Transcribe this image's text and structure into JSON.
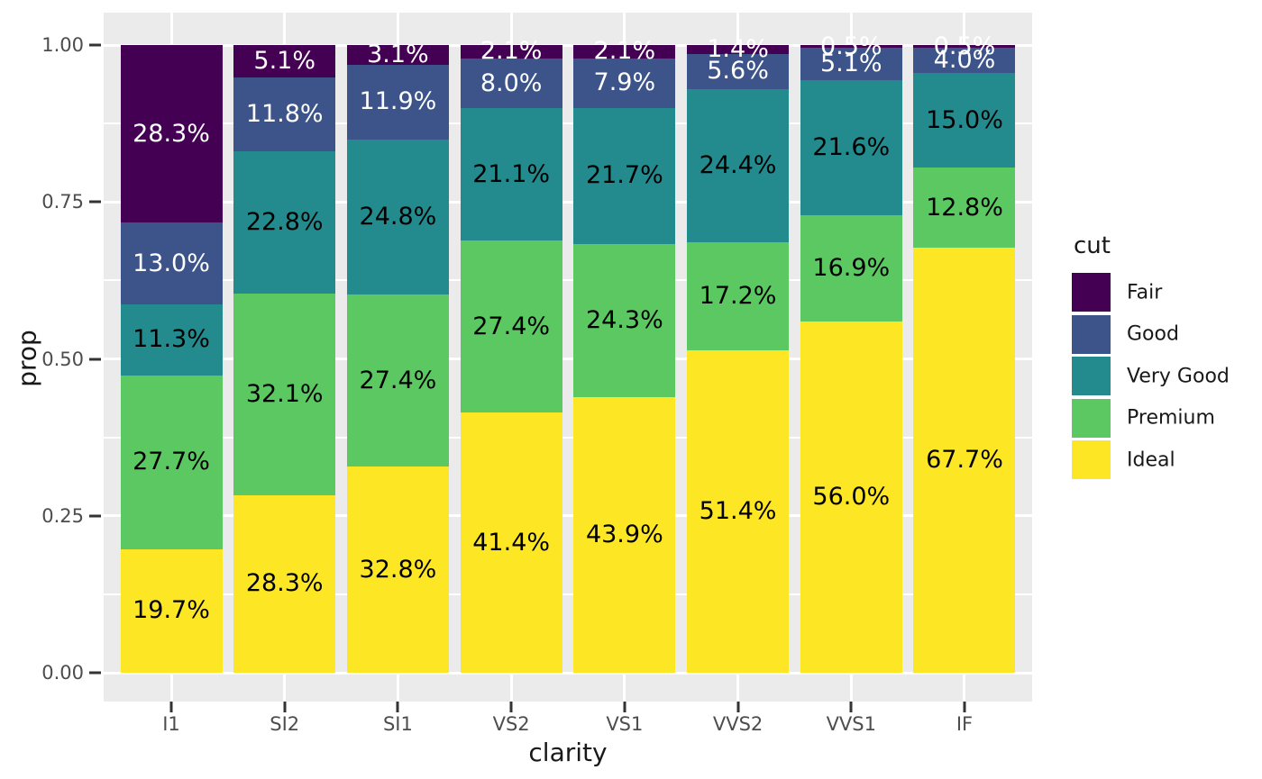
{
  "chart_data": {
    "type": "bar",
    "subtype": "stacked-100-percent",
    "title": "",
    "xlabel": "clarity",
    "ylabel": "prop",
    "categories": [
      "I1",
      "SI2",
      "SI1",
      "VS2",
      "VS1",
      "VVS2",
      "VVS1",
      "IF"
    ],
    "series": [
      {
        "name": "Fair",
        "color": "#440154",
        "label_color": "#ffffff",
        "values": [
          28.3,
          5.1,
          3.1,
          2.1,
          2.1,
          1.4,
          0.5,
          0.5
        ]
      },
      {
        "name": "Good",
        "color": "#3D548B",
        "label_color": "#ffffff",
        "values": [
          13.0,
          11.8,
          11.9,
          8.0,
          7.9,
          5.6,
          5.1,
          4.0
        ]
      },
      {
        "name": "Very Good",
        "color": "#238A8D",
        "label_color": "#000000",
        "values": [
          11.3,
          22.8,
          24.8,
          21.1,
          21.7,
          24.4,
          21.6,
          15.0
        ]
      },
      {
        "name": "Premium",
        "color": "#5BC862",
        "label_color": "#000000",
        "values": [
          27.7,
          32.1,
          27.4,
          27.4,
          24.3,
          17.2,
          16.9,
          12.8
        ]
      },
      {
        "name": "Ideal",
        "color": "#FDE725",
        "label_color": "#000000",
        "values": [
          19.7,
          28.3,
          32.8,
          41.4,
          43.9,
          51.4,
          56.0,
          67.7
        ]
      }
    ],
    "value_suffix": "%",
    "y_ticks": [
      {
        "label": "1.00",
        "v": 100
      },
      {
        "label": "0.75",
        "v": 75
      },
      {
        "label": "0.50",
        "v": 50
      },
      {
        "label": "0.25",
        "v": 25
      },
      {
        "label": "0.00",
        "v": 0
      }
    ],
    "y_minor_ticks": [
      12.5,
      37.5,
      62.5,
      87.5
    ],
    "ylim": [
      0,
      1
    ],
    "grid": true,
    "legend": {
      "title": "cut",
      "position": "right"
    }
  },
  "colors": {
    "panel_background": "#EBEBEB",
    "gridline": "#ffffff",
    "tick_mark": "#333333",
    "axis_text": "#4D4D4D",
    "axis_title": "#191919",
    "page_background": "#ffffff"
  }
}
